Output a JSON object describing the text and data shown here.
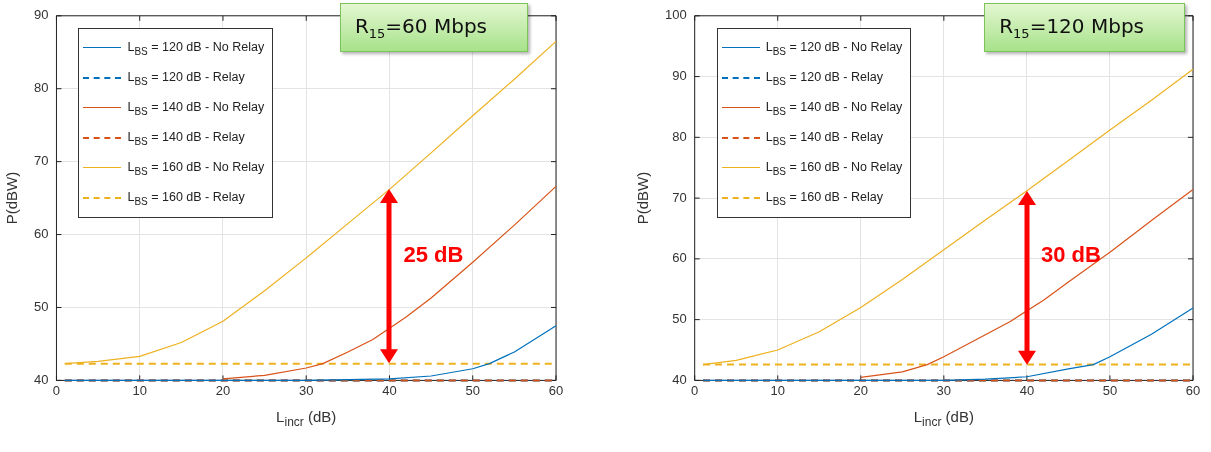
{
  "chart_data": [
    {
      "type": "line",
      "title": "R$_{15}$=60 Mbps",
      "xlabel": "L$_{incr}$ (dB)",
      "ylabel": "P(dBW)",
      "xlim": [
        0,
        60
      ],
      "xticks": [
        0,
        10,
        20,
        30,
        40,
        50,
        60
      ],
      "ylim": [
        40,
        90
      ],
      "yticks": [
        40,
        50,
        60,
        70,
        80,
        90
      ],
      "grid": true,
      "legend": "top left",
      "annotations": [
        "25 dB"
      ],
      "series": [
        {
          "name": "L$_{BS}$ = 120 dB - No Relay",
          "color": "#0072bd",
          "line_style": "solid",
          "x": [
            1,
            10,
            30,
            35,
            40,
            45,
            50,
            52,
            55,
            60
          ],
          "values": [
            40,
            40,
            40,
            40.1,
            40.2,
            40.6,
            41.6,
            42.3,
            43.9,
            47.5
          ]
        },
        {
          "name": "L$_{BS}$ = 120 dB - Relay",
          "color": "#0072bd",
          "line_style": "dashed",
          "x": [
            1,
            60
          ],
          "values": [
            40,
            40
          ]
        },
        {
          "name": "L$_{BS}$ = 140 dB - No Relay",
          "color": "#d95319",
          "line_style": "solid",
          "x": [
            20,
            25,
            30,
            32,
            35,
            38,
            42,
            45,
            50,
            55,
            60
          ],
          "values": [
            40.2,
            40.7,
            41.7,
            42.3,
            43.9,
            45.6,
            48.7,
            51.3,
            56.2,
            61.3,
            66.6
          ]
        },
        {
          "name": "L$_{BS}$ = 140 dB - Relay",
          "color": "#d95319",
          "line_style": "dashed",
          "x": [
            1,
            60
          ],
          "values": [
            40,
            40
          ]
        },
        {
          "name": "L$_{BS}$ = 160 dB - No Relay",
          "color": "#edb120",
          "line_style": "solid",
          "x": [
            1,
            5,
            10,
            15,
            20,
            25,
            30,
            35,
            40,
            45,
            50,
            55,
            60
          ],
          "values": [
            42.3,
            42.6,
            43.3,
            45.2,
            48.1,
            52.3,
            56.8,
            61.5,
            66.2,
            71.2,
            76.3,
            81.3,
            86.5
          ]
        },
        {
          "name": "L$_{BS}$ = 160 dB - Relay",
          "color": "#edb120",
          "line_style": "dashed",
          "x": [
            1,
            60
          ],
          "values": [
            42.3,
            42.3
          ]
        }
      ]
    },
    {
      "type": "line",
      "title": "R$_{15}$=120 Mbps",
      "xlabel": "L$_{incr}$ (dB)",
      "ylabel": "P(dBW)",
      "xlim": [
        0,
        60
      ],
      "xticks": [
        0,
        10,
        20,
        30,
        40,
        50,
        60
      ],
      "ylim": [
        40,
        100
      ],
      "yticks": [
        40,
        50,
        60,
        70,
        80,
        90,
        100
      ],
      "grid": true,
      "legend": "top left",
      "annotations": [
        "30 dB"
      ],
      "series": [
        {
          "name": "L$_{BS}$ = 120 dB - No Relay",
          "color": "#0072bd",
          "line_style": "solid",
          "x": [
            1,
            10,
            30,
            35,
            40,
            45,
            48,
            50,
            55,
            60
          ],
          "values": [
            40,
            40,
            40,
            40.2,
            40.6,
            41.9,
            42.6,
            43.9,
            47.6,
            51.9
          ]
        },
        {
          "name": "L$_{BS}$ = 120 dB - Relay",
          "color": "#0072bd",
          "line_style": "dashed",
          "x": [
            1,
            60
          ],
          "values": [
            40,
            40
          ]
        },
        {
          "name": "L$_{BS}$ = 140 dB - No Relay",
          "color": "#d95319",
          "line_style": "solid",
          "x": [
            20,
            25,
            28,
            30,
            35,
            38,
            42,
            45,
            50,
            55,
            60
          ],
          "values": [
            40.5,
            41.4,
            42.6,
            43.9,
            47.5,
            49.7,
            53.2,
            56.2,
            61.1,
            66.3,
            71.4
          ]
        },
        {
          "name": "L$_{BS}$ = 140 dB - Relay",
          "color": "#d95319",
          "line_style": "dashed",
          "x": [
            1,
            60
          ],
          "values": [
            40,
            40
          ]
        },
        {
          "name": "L$_{BS}$ = 160 dB - No Relay",
          "color": "#edb120",
          "line_style": "solid",
          "x": [
            1,
            5,
            10,
            15,
            20,
            25,
            30,
            35,
            40,
            45,
            50,
            55,
            60
          ],
          "values": [
            42.6,
            43.3,
            45.0,
            48.0,
            52.0,
            56.6,
            61.5,
            66.4,
            71.2,
            76.2,
            81.2,
            86.1,
            91.2
          ]
        },
        {
          "name": "L$_{BS}$ = 160 dB - Relay",
          "color": "#edb120",
          "line_style": "dashed",
          "x": [
            1,
            60
          ],
          "values": [
            42.6,
            42.6
          ]
        }
      ]
    }
  ]
}
